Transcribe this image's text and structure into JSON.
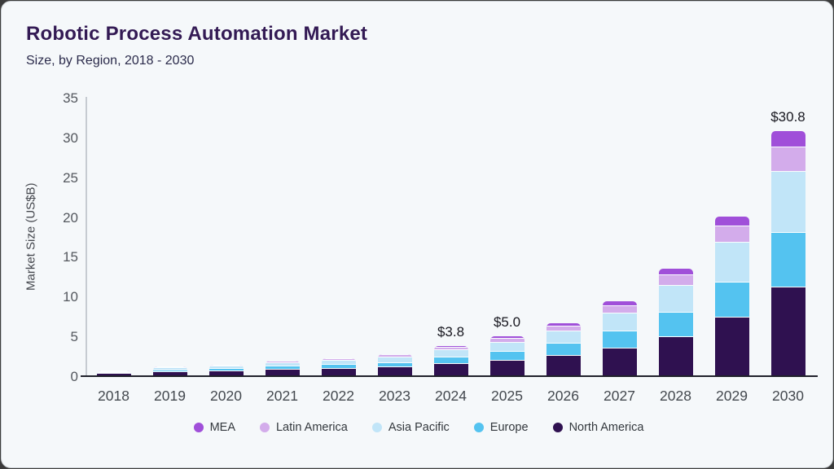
{
  "page": {
    "title": "Robotic Process Automation Market",
    "subtitle": "Size, by Region, 2018 - 2030"
  },
  "colors": {
    "outer_background": "#3b3b3b",
    "card_background": "#f5f8fa",
    "card_border": "#c9ced2",
    "title_text": "#331a54",
    "subtitle_text": "#2b2b4b",
    "tick_text": "#54585e",
    "x_axis_line": "#20212b",
    "y_axis_line": "#c6cbd1",
    "segment_separator": "#fafdfe",
    "bar_label_text": "#17171f"
  },
  "chart_data": {
    "type": "bar",
    "stacked": true,
    "title": "Robotic Process Automation Market",
    "subtitle": "Size, by Region, 2018 - 2030",
    "xlabel": "",
    "ylabel": "Market Size (US$B)",
    "ylim": [
      0,
      35
    ],
    "yticks": [
      0,
      5,
      10,
      15,
      20,
      25,
      30,
      35
    ],
    "grid": false,
    "legend_position": "bottom",
    "categories": [
      "2018",
      "2019",
      "2020",
      "2021",
      "2022",
      "2023",
      "2024",
      "2025",
      "2026",
      "2027",
      "2028",
      "2029",
      "2030"
    ],
    "series": [
      {
        "name": "North America",
        "color": "#2f1150",
        "values": [
          0.3,
          0.5,
          0.62,
          0.82,
          0.95,
          1.12,
          1.5,
          1.95,
          2.6,
          3.45,
          4.95,
          7.4,
          11.2
        ]
      },
      {
        "name": "Europe",
        "color": "#54c3f0",
        "values": [
          0.12,
          0.22,
          0.28,
          0.38,
          0.45,
          0.55,
          0.85,
          1.1,
          1.45,
          2.15,
          3.05,
          4.4,
          6.8
        ]
      },
      {
        "name": "Asia Pacific",
        "color": "#c1e5f8",
        "values": [
          0.13,
          0.26,
          0.33,
          0.45,
          0.58,
          0.7,
          0.9,
          1.15,
          1.55,
          2.3,
          3.4,
          5.0,
          7.7
        ]
      },
      {
        "name": "Latin America",
        "color": "#d3aceb",
        "values": [
          0.03,
          0.07,
          0.1,
          0.15,
          0.19,
          0.26,
          0.35,
          0.5,
          0.65,
          0.9,
          1.25,
          2.0,
          3.1
        ]
      },
      {
        "name": "MEA",
        "color": "#a04fd9",
        "values": [
          0.02,
          0.05,
          0.07,
          0.1,
          0.13,
          0.17,
          0.2,
          0.3,
          0.45,
          0.6,
          0.85,
          1.3,
          2.0
        ]
      }
    ],
    "totals": [
      0.6,
      1.1,
      1.4,
      1.9,
      2.3,
      2.8,
      3.8,
      5.0,
      6.7,
      9.4,
      13.5,
      20.1,
      30.8
    ],
    "bar_labels": [
      {
        "category": "2024",
        "label": "$3.8"
      },
      {
        "category": "2025",
        "label": "$5.0"
      },
      {
        "category": "2030",
        "label": "$30.8"
      }
    ],
    "legend": [
      {
        "label": "MEA",
        "color": "#a04fd9"
      },
      {
        "label": "Latin America",
        "color": "#d3aceb"
      },
      {
        "label": "Asia Pacific",
        "color": "#c1e5f8"
      },
      {
        "label": "Europe",
        "color": "#54c3f0"
      },
      {
        "label": "North America",
        "color": "#2f1150"
      }
    ]
  }
}
